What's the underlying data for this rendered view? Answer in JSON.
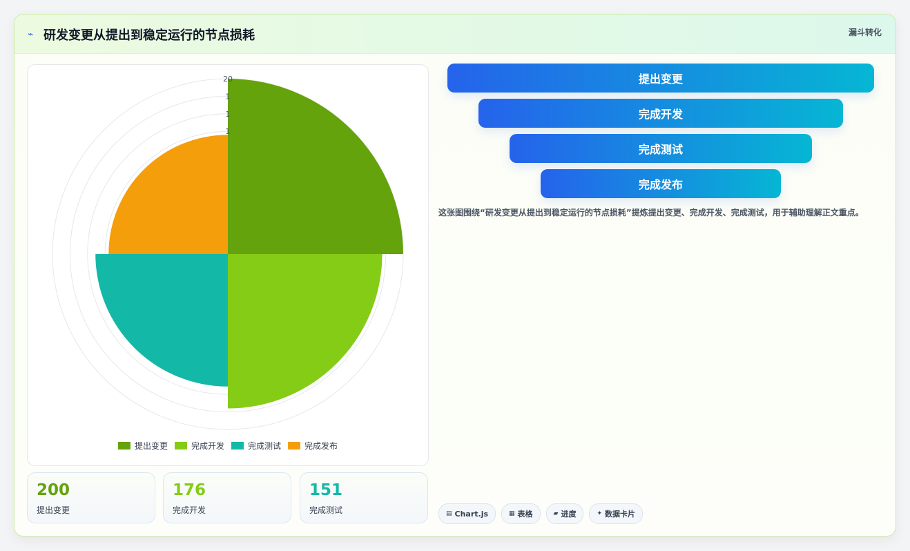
{
  "header": {
    "icon": "lightning-icon",
    "title": "研发变更从提出到稳定运行的节点损耗",
    "tag": "漏斗转化"
  },
  "chart_data": {
    "type": "polarArea",
    "categories": [
      "提出变更",
      "完成开发",
      "完成测试",
      "完成发布"
    ],
    "values": [
      200,
      176,
      151,
      136
    ],
    "colors": [
      "#65a30d",
      "#84cc16",
      "#14b8a6",
      "#f59e0b"
    ],
    "r_max": 200,
    "r_ticks": [
      "20",
      "1",
      "1",
      "1"
    ],
    "legend_position": "bottom"
  },
  "stats": [
    {
      "value": "200",
      "label": "提出变更",
      "color": "#65a30d"
    },
    {
      "value": "176",
      "label": "完成开发",
      "color": "#84cc16"
    },
    {
      "value": "151",
      "label": "完成测试",
      "color": "#14b8a6"
    }
  ],
  "funnel": [
    {
      "label": "提出变更"
    },
    {
      "label": "完成开发"
    },
    {
      "label": "完成测试"
    },
    {
      "label": "完成发布"
    }
  ],
  "description": "这张图围绕“研发变更从提出到稳定运行的节点损耗”提炼提出变更、完成开发、完成测试，用于辅助理解正文重点。",
  "chips": [
    {
      "icon": "chart-icon",
      "glyph": "▤",
      "label": "Chart.js"
    },
    {
      "icon": "table-icon",
      "glyph": "▦",
      "label": "表格"
    },
    {
      "icon": "progress-icon",
      "glyph": "▰",
      "label": "进度"
    },
    {
      "icon": "card-icon",
      "glyph": "✦",
      "label": "数据卡片"
    }
  ]
}
